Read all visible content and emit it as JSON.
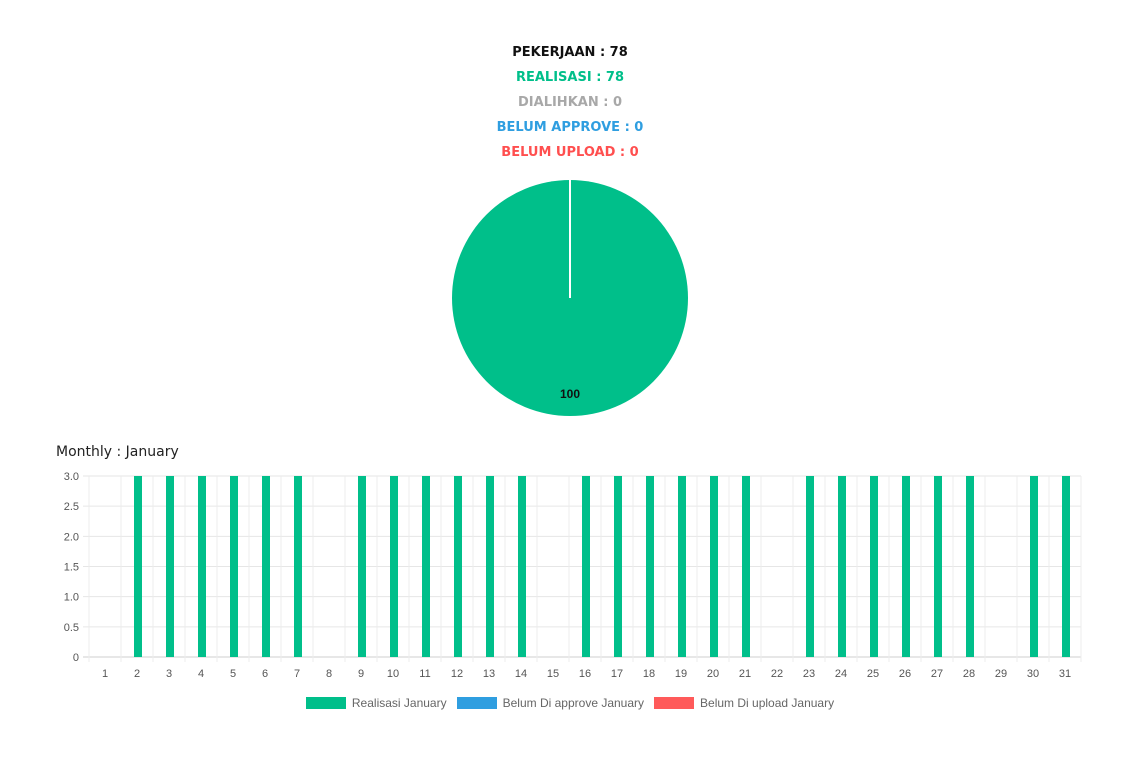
{
  "summary": {
    "pekerjaan": "PEKERJAAN : 78",
    "realisasi": "REALISASI : 78",
    "dialihkan": "DIALIHKAN : 0",
    "belum_approve": "BELUM APPROVE : 0",
    "belum_upload": "BELUM UPLOAD : 0"
  },
  "monthly_title": "Monthly : January",
  "colors": {
    "realisasi": "#00bf8a",
    "approve": "#2f9ee0",
    "upload": "#ff5a5a"
  },
  "chart_data": [
    {
      "type": "pie",
      "slices": [
        {
          "label": "Realisasi",
          "value": 100
        }
      ],
      "data_labels": [
        "100"
      ]
    },
    {
      "type": "bar",
      "categories": [
        "1",
        "2",
        "3",
        "4",
        "5",
        "6",
        "7",
        "8",
        "9",
        "10",
        "11",
        "12",
        "13",
        "14",
        "15",
        "16",
        "17",
        "18",
        "19",
        "20",
        "21",
        "22",
        "23",
        "24",
        "25",
        "26",
        "27",
        "28",
        "29",
        "30",
        "31"
      ],
      "series": [
        {
          "name": "Realisasi January",
          "values": [
            0,
            3,
            3,
            3,
            3,
            3,
            3,
            0,
            3,
            3,
            3,
            3,
            3,
            3,
            0,
            3,
            3,
            3,
            3,
            3,
            3,
            0,
            3,
            3,
            3,
            3,
            3,
            3,
            0,
            3,
            3
          ]
        },
        {
          "name": "Belum Di approve January",
          "values": [
            0,
            0,
            0,
            0,
            0,
            0,
            0,
            0,
            0,
            0,
            0,
            0,
            0,
            0,
            0,
            0,
            0,
            0,
            0,
            0,
            0,
            0,
            0,
            0,
            0,
            0,
            0,
            0,
            0,
            0,
            0
          ]
        },
        {
          "name": "Belum Di upload January",
          "values": [
            0,
            0,
            0,
            0,
            0,
            0,
            0,
            0,
            0,
            0,
            0,
            0,
            0,
            0,
            0,
            0,
            0,
            0,
            0,
            0,
            0,
            0,
            0,
            0,
            0,
            0,
            0,
            0,
            0,
            0,
            0
          ]
        }
      ],
      "ylim": [
        0,
        3.0
      ],
      "yticks": [
        "0",
        "0.5",
        "1.0",
        "1.5",
        "2.0",
        "2.5",
        "3.0"
      ],
      "grid": true,
      "legend": "bottom"
    }
  ]
}
